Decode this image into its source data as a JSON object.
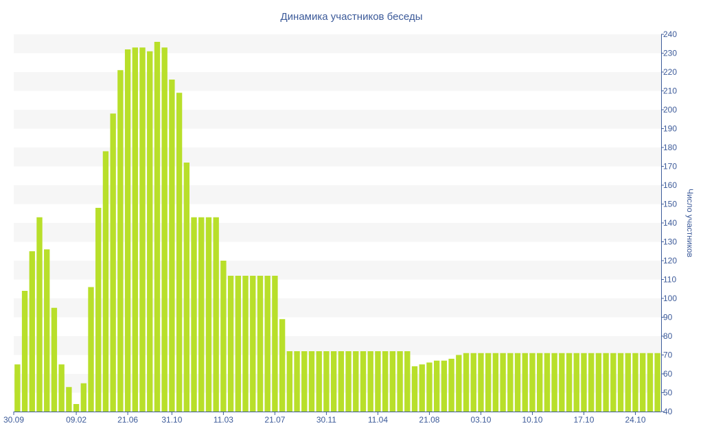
{
  "chart_data": {
    "type": "bar",
    "title": "Динамика участников беседы",
    "ylabel": "Число участников",
    "xlabel": "",
    "ylim": [
      40,
      240
    ],
    "yticks": [
      40,
      50,
      60,
      70,
      80,
      90,
      100,
      110,
      120,
      130,
      140,
      150,
      160,
      170,
      180,
      190,
      200,
      210,
      220,
      230,
      240
    ],
    "xtick_labels": [
      "30.09",
      "09.02",
      "21.06",
      "31.10",
      "11.03",
      "21.07",
      "30.11",
      "11.04",
      "21.08",
      "03.10",
      "10.10",
      "17.10",
      "24.10"
    ],
    "xtick_indices": [
      0,
      8,
      15,
      21,
      28,
      35,
      42,
      49,
      56,
      63,
      70,
      77,
      84
    ],
    "y_axis_position": "right",
    "grid": "horizontal-bands",
    "legend": "none",
    "values": [
      65,
      104,
      125,
      143,
      126,
      95,
      65,
      53,
      44,
      55,
      106,
      148,
      178,
      198,
      221,
      232,
      233,
      233,
      231,
      236,
      233,
      216,
      209,
      172,
      143,
      143,
      143,
      143,
      120,
      112,
      112,
      112,
      112,
      112,
      112,
      112,
      89,
      72,
      72,
      72,
      72,
      72,
      72,
      72,
      72,
      72,
      72,
      72,
      72,
      72,
      72,
      72,
      72,
      72,
      64,
      65,
      66,
      67,
      67,
      68,
      70,
      71,
      71,
      71,
      71,
      71,
      71,
      71,
      71,
      71,
      71,
      71,
      71,
      71,
      71,
      71,
      71,
      71,
      71,
      71,
      71,
      71,
      71,
      71,
      71,
      71,
      71,
      71
    ]
  },
  "colors": {
    "bar": "#b8df2a",
    "band": "#f6f6f6",
    "text": "#3c5a99",
    "axis": "#3c5a99"
  }
}
